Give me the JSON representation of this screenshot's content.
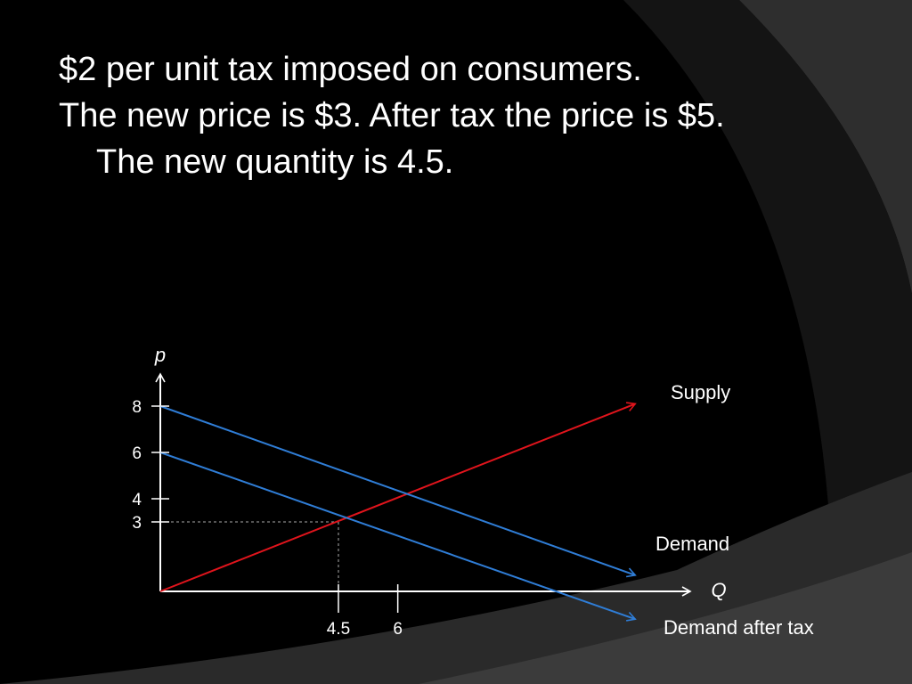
{
  "slide": {
    "line1": "$2 per unit tax imposed on consumers.",
    "line2": "The new price is $3.  After tax the price is $5.",
    "line3": "The new quantity is 4.5."
  },
  "colors": {
    "background": "#000000",
    "supply": "#e0141c",
    "demand": "#2f7dd6",
    "axis": "#ffffff",
    "guide": "#aaaaaa"
  },
  "chart_data": {
    "type": "line",
    "xlabel": "Q",
    "ylabel": "p",
    "x_ticks": [
      4.5,
      6
    ],
    "y_ticks": [
      3,
      4,
      6,
      8
    ],
    "series": [
      {
        "name": "Supply",
        "x": [
          0,
          12
        ],
        "y": [
          0,
          8.1
        ]
      },
      {
        "name": "Demand",
        "x": [
          0,
          12
        ],
        "y": [
          8,
          0.7
        ]
      },
      {
        "name": "Demand after tax",
        "x": [
          0,
          12
        ],
        "y": [
          6,
          -1.2
        ]
      }
    ],
    "guide_point": {
      "x": 4.5,
      "y": 3
    }
  }
}
